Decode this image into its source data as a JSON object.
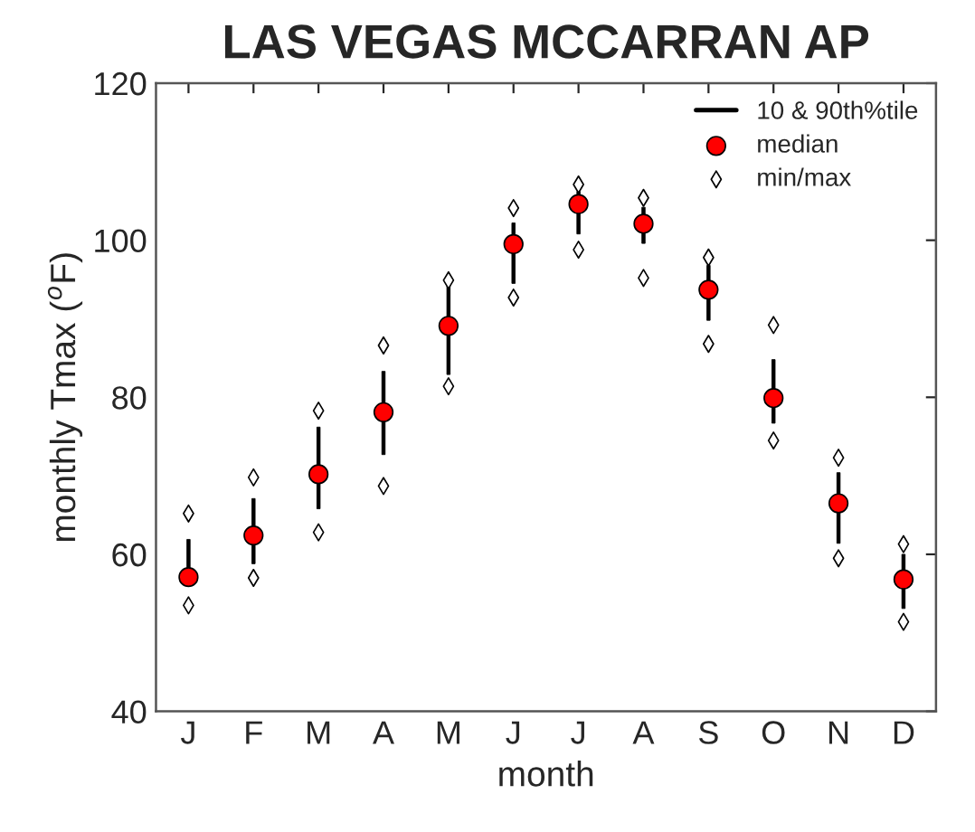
{
  "chart_data": {
    "type": "scatter",
    "title": "LAS VEGAS MCCARRAN AP",
    "xlabel": "month",
    "ylabel": "monthly Tmax ($^{o}$F)",
    "categories": [
      "J",
      "F",
      "M",
      "A",
      "M",
      "J",
      "J",
      "A",
      "S",
      "O",
      "N",
      "D"
    ],
    "ylim": [
      40,
      120
    ],
    "yticks": [
      40,
      60,
      80,
      100,
      120
    ],
    "grid": false,
    "legend": "top right",
    "series": [
      {
        "name": "10 & 90th%tile",
        "type": "bar",
        "color": "#000000",
        "base": [
          56.2,
          58.8,
          65.8,
          72.7,
          82.9,
          94.5,
          100.8,
          99.6,
          89.8,
          76.7,
          61.4,
          53.1
        ],
        "values": [
          5.7,
          8.3,
          10.4,
          10.6,
          11.6,
          7.7,
          5.4,
          4.6,
          7.0,
          8.1,
          9.0,
          6.9
        ]
      },
      {
        "name": "median",
        "type": "scatter",
        "color": "#ff0000",
        "marker": "circle",
        "values": [
          57.1,
          62.4,
          70.2,
          78.1,
          89.1,
          99.5,
          104.6,
          102.1,
          93.7,
          79.9,
          66.5,
          56.8
        ]
      },
      {
        "name": "min/max",
        "type": "scatter",
        "color": "#ffffff",
        "marker": "diamond",
        "values": [
          53.5,
          57.0,
          62.8,
          68.7,
          81.4,
          92.7,
          98.8,
          95.2,
          86.8,
          74.5,
          59.5,
          51.4
        ]
      },
      {
        "color": "#ffffff",
        "marker": "diamond",
        "values": [
          65.2,
          69.8,
          78.3,
          86.6,
          94.9,
          104.1,
          107.1,
          105.4,
          97.8,
          89.2,
          72.3,
          61.3
        ]
      }
    ]
  }
}
